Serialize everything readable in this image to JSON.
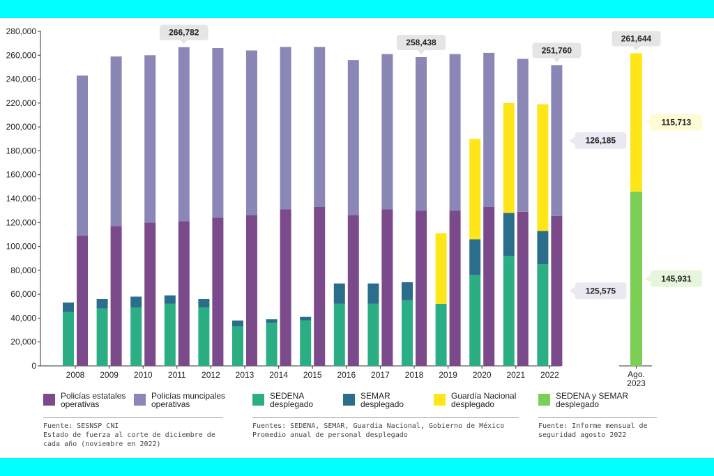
{
  "chart_data": [
    {
      "type": "bar",
      "stacking": "two stacked columns per year (deployed forces left, police right)",
      "categories": [
        "2008",
        "2009",
        "2010",
        "2011",
        "2012",
        "2013",
        "2014",
        "2015",
        "2016",
        "2017",
        "2018",
        "2019",
        "2020",
        "2021",
        "2022"
      ],
      "ylim": [
        0,
        280000
      ],
      "yticks": [
        "0",
        "20,000",
        "40,000",
        "60,000",
        "80,000",
        "100,000",
        "120,000",
        "140,000",
        "160,000",
        "180,000",
        "200,000",
        "220,000",
        "240,000",
        "260,000",
        "280,000"
      ],
      "grid": false,
      "series": [
        {
          "name": "SEDENA desplegado",
          "color": "#2bae84",
          "stack": "deployed",
          "values": [
            45000,
            48000,
            49000,
            52000,
            49000,
            33000,
            36000,
            38000,
            52000,
            52000,
            55000,
            52000,
            76000,
            92000,
            85000
          ]
        },
        {
          "name": "SEMAR desplegado",
          "color": "#2b6e8c",
          "stack": "deployed",
          "values": [
            8000,
            8000,
            9000,
            7000,
            7000,
            5000,
            3000,
            3000,
            17000,
            17000,
            15000,
            0,
            30000,
            36000,
            28000
          ]
        },
        {
          "name": "Guardia Nacional desplegado",
          "color": "#ffe619",
          "stack": "deployed",
          "values": [
            0,
            0,
            0,
            0,
            0,
            0,
            0,
            0,
            0,
            0,
            0,
            59000,
            84000,
            92000,
            106000
          ]
        },
        {
          "name": "Policías estatales operativas",
          "color": "#7b4a8b",
          "stack": "police",
          "values": [
            109000,
            117000,
            120000,
            121000,
            124000,
            126000,
            131000,
            133000,
            126000,
            131000,
            130000,
            130000,
            133000,
            129000,
            125575
          ]
        },
        {
          "name": "Policías muncipales operativas",
          "color": "#8a86b6",
          "stack": "police",
          "values": [
            134000,
            142000,
            140000,
            145782,
            142000,
            138000,
            136000,
            134000,
            130000,
            130000,
            128438,
            131000,
            129000,
            128000,
            126185
          ]
        }
      ],
      "callouts": [
        {
          "category": "2011",
          "text": "266,782"
        },
        {
          "category": "2018",
          "text": "258,438"
        },
        {
          "category": "2022",
          "text": "251,760"
        },
        {
          "category": "2022",
          "series": "Policías muncipales operativas",
          "text": "126,185"
        },
        {
          "category": "2022",
          "series": "Policías estatales operativas",
          "text": "125,575"
        }
      ]
    },
    {
      "type": "bar",
      "categories": [
        "Ago. 2023"
      ],
      "ylim": [
        0,
        280000
      ],
      "series": [
        {
          "name": "SEDENA y SEMAR desplegado",
          "color": "#7ccf55",
          "values": [
            145931
          ]
        },
        {
          "name": "Guardia Nacional desplegado",
          "color": "#ffe619",
          "values": [
            115713
          ]
        }
      ],
      "callouts": [
        {
          "category": "Ago. 2023",
          "text": "261,644"
        },
        {
          "category": "Ago. 2023",
          "series": "Guardia Nacional desplegado",
          "text": "115,713"
        },
        {
          "category": "Ago. 2023",
          "series": "SEDENA y SEMAR desplegado",
          "text": "145,931"
        }
      ]
    }
  ],
  "legend": [
    {
      "label": "Policías estatales\noperativas",
      "color": "#7b4a8b"
    },
    {
      "label": "Policías muncipales\noperativas",
      "color": "#8a86b6"
    },
    {
      "label": "SEDENA\ndesplegado",
      "color": "#2bae84"
    },
    {
      "label": "SEMAR\ndesplegado",
      "color": "#2b6e8c"
    },
    {
      "label": "Guardía Nacional\ndesplegado",
      "color": "#ffe619"
    },
    {
      "label": "SEDENA y SEMAR\ndesplegado",
      "color": "#7ccf55"
    }
  ],
  "sources": [
    {
      "title": "Fuente: SESNSP CNI",
      "note": "Estado de fuerza al corte de diciembre de\ncada año (noviembre en 2022)"
    },
    {
      "title": "Fuentes: SEDENA, SEMAR, Guardia Nacional, Gobierno de México",
      "note": "Promedio anual de personal desplegado"
    },
    {
      "title": "Fuente: Informe mensual de\nseguridad agosto 2022",
      "note": ""
    }
  ]
}
